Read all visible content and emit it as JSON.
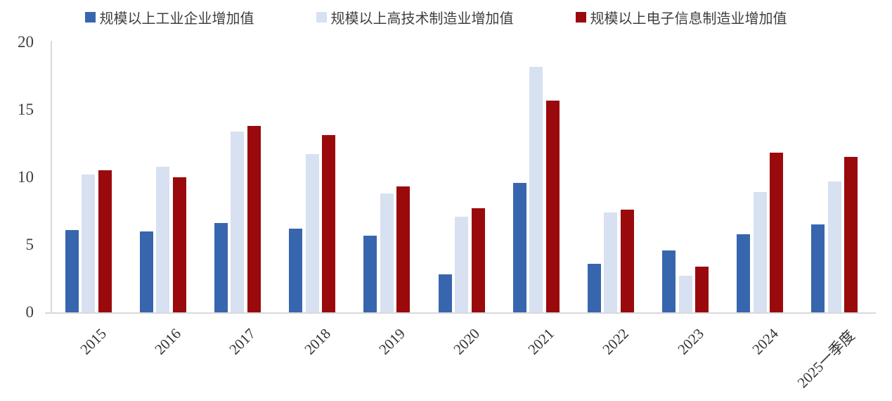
{
  "chart_data": {
    "type": "bar",
    "title": "",
    "xlabel": "",
    "ylabel": "",
    "ylim": [
      0,
      20
    ],
    "yticks": [
      0,
      5,
      10,
      15,
      20
    ],
    "grid": false,
    "legend_position": "top",
    "categories": [
      "2015",
      "2016",
      "2017",
      "2018",
      "2019",
      "2020",
      "2021",
      "2022",
      "2023",
      "2024",
      "2025一季度"
    ],
    "series": [
      {
        "name": "规模以上工业企业增加值",
        "color": "#3866AE",
        "values": [
          6.1,
          6.0,
          6.6,
          6.2,
          5.7,
          2.8,
          9.6,
          3.6,
          4.6,
          5.8,
          6.5
        ]
      },
      {
        "name": "规模以上高技术制造业增加值",
        "color": "#D7E1F1",
        "values": [
          10.2,
          10.8,
          13.4,
          11.7,
          8.8,
          7.1,
          18.2,
          7.4,
          2.7,
          8.9,
          9.7
        ]
      },
      {
        "name": "规模以上电子信息制造业增加值",
        "color": "#9A0A0C",
        "values": [
          10.5,
          10.0,
          13.8,
          13.1,
          9.3,
          7.7,
          15.7,
          7.6,
          3.4,
          11.8,
          11.5
        ]
      }
    ],
    "colors": {
      "axis_line": "#d9d9d9",
      "tick_label": "#404040",
      "legend_text": "#3f3f3f"
    }
  }
}
